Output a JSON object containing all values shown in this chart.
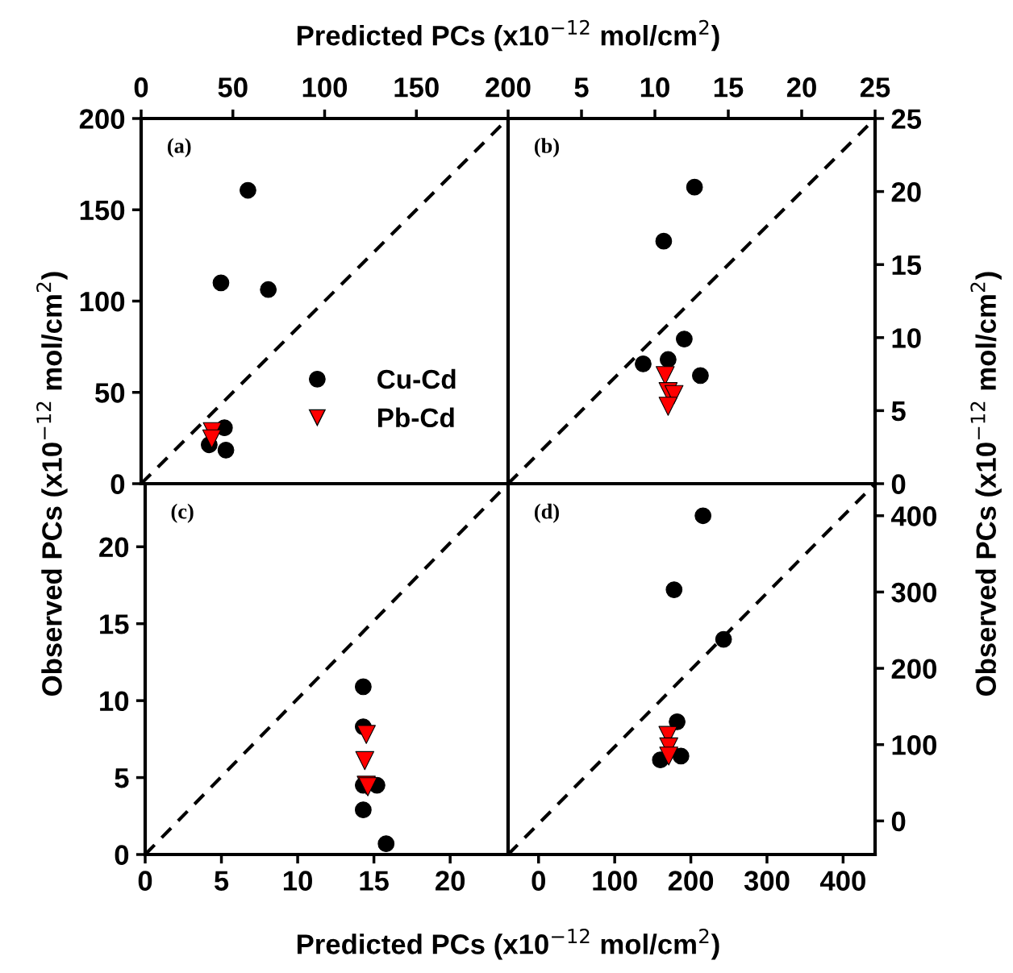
{
  "chart_data": [
    {
      "type": "scatter",
      "xlabel": "Predicted PCs (x10$^{−12}$ mol/cm$^{2}$)",
      "ylabel": "Observed PCs (x10$^{−12}$ mol/cm$^{2}$)",
      "annotations": [
        "(a)"
      ],
      "xlim": [
        0,
        200
      ],
      "ylim": [
        0,
        200
      ],
      "xticks": [
        0,
        50,
        100,
        150,
        200
      ],
      "yticks": [
        0,
        50,
        100,
        150,
        200
      ],
      "legend": "bottom right",
      "grid": false,
      "series": [
        {
          "name": "Cu-Cd",
          "color": "#000000",
          "marker": "circle",
          "x": [
            58.2,
            43.5,
            69.3,
            45.4,
            37.1,
            46.2
          ],
          "values": [
            160.7,
            110,
            106.3,
            30.6,
            21.3,
            18.4
          ]
        },
        {
          "name": "Pb-Cd",
          "color": "#ff0000",
          "marker": "triangle",
          "x": [
            38.8,
            38.5
          ],
          "values": [
            28.5,
            24.5
          ]
        },
        {
          "type": "line",
          "color": "#000000",
          "line_style": "dashed",
          "marker": "none",
          "x": [
            0,
            200
          ],
          "values": [
            0,
            200
          ]
        }
      ]
    },
    {
      "type": "scatter",
      "ylabel": "Observed PCs (x10$^{−12}$ mol/cm$^{2}$)",
      "annotations": [
        "(b)"
      ],
      "xlim": [
        0,
        25
      ],
      "ylim": [
        0,
        25
      ],
      "xticks": [
        5,
        10,
        15,
        20,
        25
      ],
      "yticks": [
        0,
        5,
        10,
        15,
        20,
        25
      ],
      "grid": false,
      "series": [
        {
          "color": "#000000",
          "marker": "circle",
          "x": [
            12.7,
            10.6,
            12.0,
            10.9,
            9.2,
            13.1
          ],
          "values": [
            20.3,
            16.6,
            9.9,
            8.5,
            8.2,
            7.4
          ]
        },
        {
          "color": "#ff0000",
          "marker": "triangle",
          "x": [
            10.7,
            10.9,
            11.3,
            10.9
          ],
          "values": [
            7.4,
            6.3,
            6.1,
            5.3
          ]
        },
        {
          "type": "line",
          "color": "#000000",
          "line_style": "dashed",
          "marker": "none",
          "x": [
            0,
            25
          ],
          "values": [
            0,
            25
          ]
        }
      ]
    },
    {
      "type": "scatter",
      "xlabel": "Predicted PCs (x10$^{−12}$ mol/cm$^{2}$)",
      "annotations": [
        "(c)"
      ],
      "xlim": [
        0,
        23.8
      ],
      "ylim": [
        0,
        24.1
      ],
      "xticks": [
        0,
        5,
        10,
        15,
        20
      ],
      "yticks": [
        0,
        5,
        10,
        15,
        20
      ],
      "grid": false,
      "series": [
        {
          "color": "#000000",
          "marker": "circle",
          "x": [
            14.3,
            14.3,
            15.2,
            14.3,
            14.3,
            15.8
          ],
          "values": [
            10.9,
            8.3,
            4.5,
            4.5,
            2.9,
            0.7
          ]
        },
        {
          "color": "#ff0000",
          "marker": "triangle",
          "x": [
            14.5,
            14.4,
            14.5,
            14.6
          ],
          "values": [
            7.8,
            6.1,
            4.5,
            4.4
          ]
        },
        {
          "type": "line",
          "color": "#000000",
          "line_style": "dashed",
          "marker": "none",
          "x": [
            0,
            23.8
          ],
          "values": [
            0,
            24.1
          ]
        }
      ]
    },
    {
      "type": "scatter",
      "annotations": [
        "(d)"
      ],
      "xlim": [
        -40,
        442
      ],
      "ylim": [
        -44,
        442
      ],
      "xticks": [
        0,
        100,
        200,
        300,
        400
      ],
      "yticks": [
        0,
        100,
        200,
        300,
        400
      ],
      "grid": false,
      "series": [
        {
          "color": "#000000",
          "marker": "circle",
          "x": [
            216,
            178,
            243,
            182,
            160,
            187
          ],
          "values": [
            400,
            303,
            238,
            130,
            80,
            85
          ]
        },
        {
          "color": "#ff0000",
          "marker": "triangle",
          "x": [
            170,
            171,
            171
          ],
          "values": [
            112,
            97,
            85
          ]
        },
        {
          "type": "line",
          "color": "#000000",
          "line_style": "dashed",
          "marker": "none",
          "x": [
            -40,
            442
          ],
          "values": [
            -44,
            442
          ]
        }
      ]
    }
  ]
}
